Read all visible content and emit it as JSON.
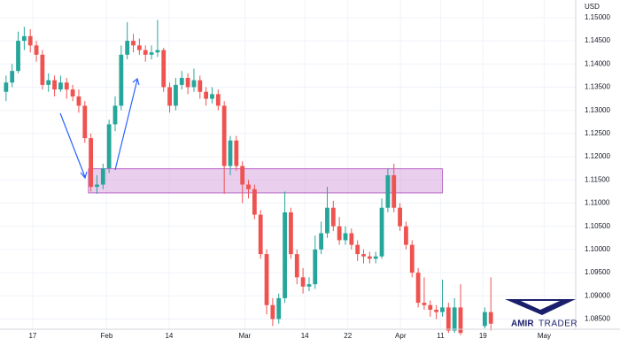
{
  "chart_data": {
    "type": "candlestick",
    "axis_label": "USD",
    "up_color": "#26a69a",
    "down_color": "#ef5350",
    "grid": true,
    "ylim": [
      1.0828,
      1.1538
    ],
    "yticks": [
      {
        "value": 1.085,
        "label": "1.08500"
      },
      {
        "value": 1.09,
        "label": "1.09000"
      },
      {
        "value": 1.095,
        "label": "1.09500"
      },
      {
        "value": 1.1,
        "label": "1.10000"
      },
      {
        "value": 1.105,
        "label": "1.10500"
      },
      {
        "value": 1.11,
        "label": "1.11000"
      },
      {
        "value": 1.115,
        "label": "1.11500"
      },
      {
        "value": 1.12,
        "label": "1.12000"
      },
      {
        "value": 1.125,
        "label": "1.12500"
      },
      {
        "value": 1.13,
        "label": "1.13000"
      },
      {
        "value": 1.135,
        "label": "1.13500"
      },
      {
        "value": 1.14,
        "label": "1.14000"
      },
      {
        "value": 1.145,
        "label": "1.14500"
      },
      {
        "value": 1.15,
        "label": "1.15000"
      }
    ],
    "xlim": [
      -1,
      94
    ],
    "xticks": [
      {
        "value": 4.4,
        "label": "17"
      },
      {
        "value": 16.6,
        "label": "Feb"
      },
      {
        "value": 26.9,
        "label": "14"
      },
      {
        "value": 39.4,
        "label": "Mar"
      },
      {
        "value": 49.3,
        "label": "14"
      },
      {
        "value": 56.4,
        "label": "22"
      },
      {
        "value": 65.1,
        "label": "Apr"
      },
      {
        "value": 71.7,
        "label": "11"
      },
      {
        "value": 78.7,
        "label": "19"
      },
      {
        "value": 88.8,
        "label": "May"
      }
    ],
    "open": [
      1.134,
      1.136,
      1.1385,
      1.145,
      1.146,
      1.144,
      1.142,
      1.1355,
      1.1365,
      1.1345,
      1.136,
      1.1345,
      1.133,
      1.131,
      1.124,
      1.1135,
      1.114,
      1.1175,
      1.127,
      1.131,
      1.142,
      1.145,
      1.144,
      1.143,
      1.142,
      1.1425,
      1.143,
      1.135,
      1.131,
      1.1355,
      1.137,
      1.135,
      1.1365,
      1.134,
      1.1325,
      1.1335,
      1.131,
      1.118,
      1.1235,
      1.118,
      1.114,
      1.113,
      1.1075,
      1.099,
      1.088,
      1.085,
      1.0895,
      1.108,
      1.099,
      1.094,
      1.092,
      1.0925,
      1.1,
      1.1035,
      1.109,
      1.105,
      1.102,
      1.1035,
      1.101,
      1.099,
      1.0985,
      1.098,
      1.0985,
      1.109,
      1.116,
      1.109,
      1.105,
      1.101,
      1.095,
      1.0885,
      1.088,
      1.087,
      1.0865,
      1.0875,
      1.0825,
      1.0875,
      null,
      null,
      null,
      1.0835,
      1.0865
    ],
    "high": [
      1.1375,
      1.14,
      1.147,
      1.148,
      1.1475,
      1.145,
      1.143,
      1.138,
      1.1375,
      1.1375,
      1.137,
      1.1355,
      1.1345,
      1.132,
      1.125,
      1.116,
      1.1185,
      1.128,
      1.133,
      1.144,
      1.149,
      1.1465,
      1.1455,
      1.144,
      1.144,
      1.1495,
      1.1435,
      1.136,
      1.137,
      1.1385,
      1.138,
      1.139,
      1.1375,
      1.135,
      1.135,
      1.1345,
      1.132,
      1.1245,
      1.1245,
      1.119,
      1.115,
      1.114,
      1.1085,
      1.1,
      1.0895,
      1.0905,
      1.1125,
      1.109,
      1.1,
      1.096,
      1.094,
      1.103,
      1.106,
      1.1135,
      1.1105,
      1.107,
      1.105,
      1.1045,
      1.102,
      1.1,
      1.0995,
      1.0995,
      1.111,
      1.1175,
      1.1185,
      1.11,
      1.106,
      1.102,
      1.096,
      1.094,
      1.089,
      1.088,
      1.0935,
      1.0885,
      1.0895,
      1.0925,
      null,
      null,
      null,
      1.0875,
      1.094
    ],
    "low": [
      1.132,
      1.135,
      1.138,
      1.143,
      1.1425,
      1.1405,
      1.1345,
      1.134,
      1.133,
      1.134,
      1.1325,
      1.132,
      1.1295,
      1.123,
      1.1125,
      1.112,
      1.113,
      1.1165,
      1.1255,
      1.13,
      1.141,
      1.1425,
      1.142,
      1.1405,
      1.141,
      1.1415,
      1.134,
      1.1295,
      1.13,
      1.1345,
      1.1335,
      1.134,
      1.1325,
      1.131,
      1.1315,
      1.13,
      1.112,
      1.116,
      1.117,
      1.11,
      1.111,
      1.1065,
      1.098,
      1.086,
      1.0835,
      1.084,
      1.0885,
      1.098,
      1.0925,
      1.0905,
      1.091,
      1.0915,
      1.099,
      1.1025,
      1.104,
      1.101,
      1.101,
      1.1,
      1.0975,
      1.097,
      1.097,
      1.097,
      1.098,
      1.108,
      1.108,
      1.104,
      1.1,
      1.094,
      1.0875,
      1.087,
      1.0855,
      1.085,
      1.0855,
      1.082,
      1.082,
      1.0815,
      null,
      null,
      null,
      1.083,
      1.0825
    ],
    "close": [
      1.136,
      1.1385,
      1.145,
      1.146,
      1.144,
      1.142,
      1.1355,
      1.1365,
      1.1345,
      1.136,
      1.1345,
      1.133,
      1.131,
      1.124,
      1.1135,
      1.114,
      1.1175,
      1.127,
      1.131,
      1.142,
      1.145,
      1.144,
      1.143,
      1.142,
      1.1425,
      1.143,
      1.135,
      1.131,
      1.1355,
      1.137,
      1.135,
      1.1365,
      1.134,
      1.1325,
      1.1335,
      1.131,
      1.118,
      1.1235,
      1.118,
      1.114,
      1.113,
      1.1075,
      1.099,
      1.088,
      1.085,
      1.0895,
      1.108,
      1.099,
      1.094,
      1.092,
      1.0925,
      1.1,
      1.1035,
      1.109,
      1.105,
      1.102,
      1.1035,
      1.101,
      1.099,
      1.0985,
      1.098,
      1.0985,
      1.109,
      1.116,
      1.109,
      1.105,
      1.101,
      1.095,
      1.0885,
      1.088,
      1.087,
      1.0865,
      1.0875,
      1.0825,
      1.0875,
      1.082,
      null,
      null,
      null,
      1.0865,
      1.084
    ],
    "zone": {
      "from": 1.1122,
      "to": 1.1174,
      "start": 13.6,
      "end": 72,
      "color": "#ce93d8"
    },
    "logo": {
      "word1": "AMIR",
      "word2": "TRADER"
    }
  }
}
